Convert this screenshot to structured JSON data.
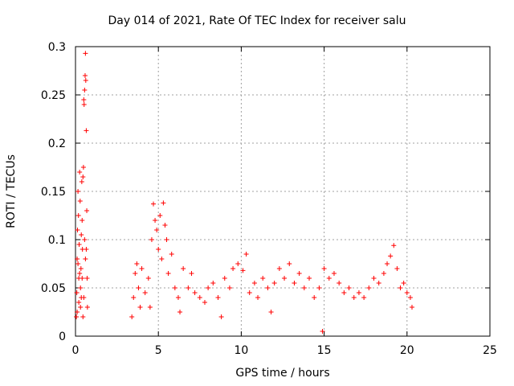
{
  "chart_data": {
    "type": "scatter",
    "title": "Day 014 of 2021, Rate Of TEC Index for receiver salu",
    "xlabel": "GPS time / hours",
    "ylabel": "ROTI / TECUs",
    "xlim": [
      0,
      25
    ],
    "ylim": [
      0,
      0.3
    ],
    "xticks": [
      "0",
      "5",
      "10",
      "15",
      "20",
      "25"
    ],
    "yticks": [
      "0",
      "0.05",
      "0.1",
      "0.15",
      "0.2",
      "0.25",
      "0.3"
    ],
    "grid": true,
    "marker": "+",
    "color": "#ff0000",
    "series": [
      {
        "name": "",
        "points": [
          [
            0.05,
            0.02
          ],
          [
            0.08,
            0.045
          ],
          [
            0.1,
            0.08
          ],
          [
            0.12,
            0.11
          ],
          [
            0.15,
            0.15
          ],
          [
            0.18,
            0.125
          ],
          [
            0.2,
            0.06
          ],
          [
            0.22,
            0.095
          ],
          [
            0.25,
            0.17
          ],
          [
            0.28,
            0.14
          ],
          [
            0.3,
            0.03
          ],
          [
            0.33,
            0.07
          ],
          [
            0.35,
            0.105
          ],
          [
            0.38,
            0.16
          ],
          [
            0.4,
            0.12
          ],
          [
            0.42,
            0.09
          ],
          [
            0.45,
            0.165
          ],
          [
            0.48,
            0.175
          ],
          [
            0.5,
            0.245
          ],
          [
            0.52,
            0.24
          ],
          [
            0.55,
            0.255
          ],
          [
            0.58,
            0.27
          ],
          [
            0.6,
            0.293
          ],
          [
            0.62,
            0.265
          ],
          [
            0.65,
            0.213
          ],
          [
            0.68,
            0.13
          ],
          [
            0.7,
            0.06
          ],
          [
            0.72,
            0.03
          ],
          [
            0.1,
            0.025
          ],
          [
            0.3,
            0.05
          ],
          [
            0.5,
            0.04
          ],
          [
            0.6,
            0.08
          ],
          [
            0.4,
            0.06
          ],
          [
            0.2,
            0.035
          ],
          [
            0.55,
            0.1
          ],
          [
            0.65,
            0.09
          ],
          [
            0.45,
            0.02
          ],
          [
            0.35,
            0.04
          ],
          [
            0.25,
            0.065
          ],
          [
            0.15,
            0.075
          ],
          [
            3.4,
            0.02
          ],
          [
            3.5,
            0.04
          ],
          [
            3.6,
            0.065
          ],
          [
            3.7,
            0.075
          ],
          [
            3.8,
            0.05
          ],
          [
            3.9,
            0.03
          ],
          [
            4.0,
            0.07
          ],
          [
            4.2,
            0.045
          ],
          [
            4.4,
            0.06
          ],
          [
            4.6,
            0.1
          ],
          [
            4.7,
            0.137
          ],
          [
            4.8,
            0.12
          ],
          [
            4.9,
            0.11
          ],
          [
            5.0,
            0.09
          ],
          [
            5.1,
            0.125
          ],
          [
            5.2,
            0.08
          ],
          [
            5.3,
            0.138
          ],
          [
            5.4,
            0.115
          ],
          [
            5.5,
            0.1
          ],
          [
            5.6,
            0.065
          ],
          [
            5.8,
            0.085
          ],
          [
            6.0,
            0.05
          ],
          [
            6.2,
            0.04
          ],
          [
            6.5,
            0.07
          ],
          [
            6.8,
            0.05
          ],
          [
            7.0,
            0.065
          ],
          [
            7.2,
            0.045
          ],
          [
            7.5,
            0.04
          ],
          [
            7.8,
            0.035
          ],
          [
            8.0,
            0.05
          ],
          [
            8.3,
            0.055
          ],
          [
            8.6,
            0.04
          ],
          [
            9.0,
            0.06
          ],
          [
            9.3,
            0.05
          ],
          [
            9.5,
            0.07
          ],
          [
            9.8,
            0.075
          ],
          [
            10.1,
            0.068
          ],
          [
            10.3,
            0.085
          ],
          [
            10.5,
            0.045
          ],
          [
            10.8,
            0.055
          ],
          [
            11.0,
            0.04
          ],
          [
            11.3,
            0.06
          ],
          [
            11.6,
            0.05
          ],
          [
            12.0,
            0.055
          ],
          [
            12.3,
            0.07
          ],
          [
            12.6,
            0.06
          ],
          [
            12.9,
            0.075
          ],
          [
            13.2,
            0.055
          ],
          [
            13.5,
            0.065
          ],
          [
            13.8,
            0.05
          ],
          [
            14.1,
            0.06
          ],
          [
            14.4,
            0.04
          ],
          [
            14.7,
            0.05
          ],
          [
            15.0,
            0.07
          ],
          [
            15.3,
            0.06
          ],
          [
            15.6,
            0.065
          ],
          [
            15.9,
            0.055
          ],
          [
            16.2,
            0.045
          ],
          [
            16.5,
            0.05
          ],
          [
            16.8,
            0.04
          ],
          [
            17.1,
            0.045
          ],
          [
            17.4,
            0.04
          ],
          [
            17.7,
            0.05
          ],
          [
            18.0,
            0.06
          ],
          [
            18.3,
            0.055
          ],
          [
            18.6,
            0.065
          ],
          [
            18.8,
            0.075
          ],
          [
            19.0,
            0.083
          ],
          [
            19.2,
            0.094
          ],
          [
            19.4,
            0.07
          ],
          [
            19.6,
            0.05
          ],
          [
            19.8,
            0.055
          ],
          [
            20.0,
            0.045
          ],
          [
            20.2,
            0.04
          ],
          [
            20.3,
            0.03
          ],
          [
            4.5,
            0.03
          ],
          [
            6.3,
            0.025
          ],
          [
            8.8,
            0.02
          ],
          [
            11.8,
            0.025
          ],
          [
            14.9,
            0.005
          ]
        ]
      }
    ]
  }
}
